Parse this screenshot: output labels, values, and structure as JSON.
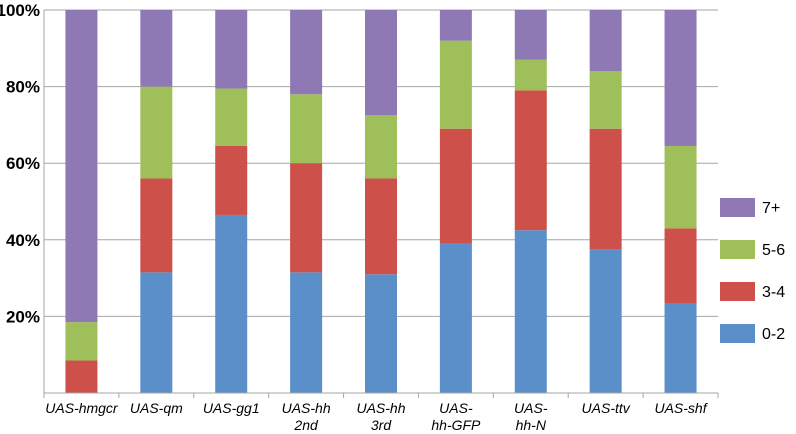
{
  "chart_data": {
    "type": "bar",
    "stacked": true,
    "percent": true,
    "categories": [
      [
        "UAS-hmgcr"
      ],
      [
        "UAS-qm"
      ],
      [
        "UAS-gg1"
      ],
      [
        "UAS-hh",
        "2nd"
      ],
      [
        "UAS-hh",
        "3rd"
      ],
      [
        "UAS-",
        "hh-GFP"
      ],
      [
        "UAS-",
        "hh-N"
      ],
      [
        "UAS-ttv"
      ],
      [
        "UAS-shf"
      ]
    ],
    "series": [
      {
        "name": "0-2",
        "color": "#5b8fc9",
        "values": [
          0,
          31.5,
          46.5,
          31.5,
          31,
          39,
          42.5,
          37.5,
          23.5
        ]
      },
      {
        "name": "3-4",
        "color": "#cd504b",
        "values": [
          8.5,
          24.5,
          18,
          28.5,
          25,
          30,
          36.5,
          31.5,
          19.5
        ]
      },
      {
        "name": "5-6",
        "color": "#9fbf5b",
        "values": [
          10,
          24,
          15,
          18,
          16.5,
          23,
          8,
          15,
          21.5
        ]
      },
      {
        "name": "7+",
        "color": "#8f79b4",
        "values": [
          81.5,
          20,
          20.5,
          22,
          27.5,
          8,
          13,
          16,
          35.5
        ]
      }
    ],
    "y_ticks": [
      "20%",
      "40%",
      "60%",
      "80%",
      "100%"
    ],
    "ylim": [
      0,
      100
    ],
    "grid": true,
    "legend": {
      "placement": "right",
      "order": [
        "7+",
        "5-6",
        "3-4",
        "0-2"
      ]
    }
  }
}
